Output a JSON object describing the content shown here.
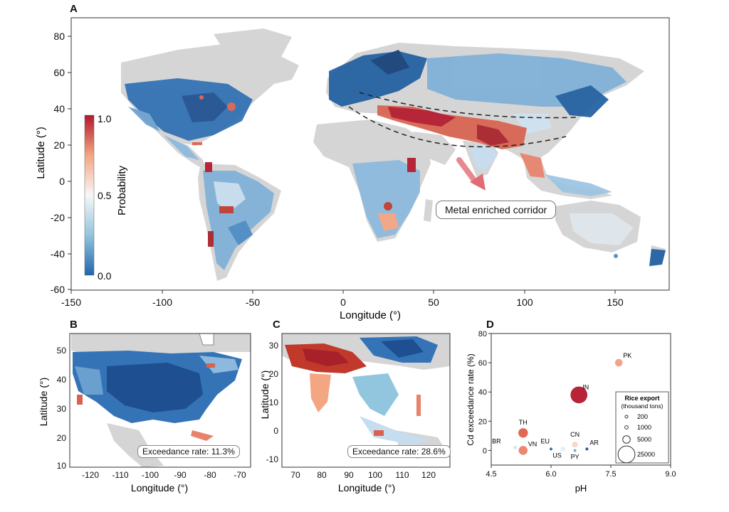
{
  "panels": {
    "a": "A",
    "b": "B",
    "c": "C",
    "d": "D"
  },
  "colorbar": {
    "label": "Probability",
    "ticks": [
      "1.0",
      "0.5",
      "0.0"
    ],
    "colors": [
      "#b2182b",
      "#f4a582",
      "#f7f7f7",
      "#92c5de",
      "#2166ac"
    ]
  },
  "corridor_label": "Metal enriched corridor",
  "exceedance": {
    "b": "Exceedance rate: 11.3%",
    "c": "Exceedance rate: 28.6%"
  },
  "colors": {
    "land": "#d3d3d3",
    "high": "#b2182b",
    "mid_high": "#e8826b",
    "low": "#4a8bc4",
    "very_low": "#1f5ea0",
    "light": "#cfe3f1"
  },
  "chart_data": [
    {
      "type": "map",
      "panel": "A",
      "xlabel": "Longitude (°)",
      "ylabel": "Latitude (°)",
      "xlim": [
        -150,
        180
      ],
      "ylim": [
        -60,
        90
      ],
      "xticks": [
        "-150",
        "-100",
        "-50",
        "0",
        "50",
        "100",
        "150"
      ],
      "yticks": [
        "80",
        "60",
        "40",
        "20",
        "0",
        "-20",
        "-40",
        "-60"
      ]
    },
    {
      "type": "map",
      "panel": "B",
      "xlabel": "Longitude (°)",
      "ylabel": "Latitude (°)",
      "xlim": [
        -127,
        -65
      ],
      "ylim": [
        10,
        55
      ],
      "xticks": [
        "-120",
        "-110",
        "-100",
        "-90",
        "-80",
        "-70"
      ],
      "yticks": [
        "50",
        "40",
        "30",
        "20",
        "10"
      ]
    },
    {
      "type": "map",
      "panel": "C",
      "xlabel": "Longitude (°)",
      "ylabel": "Latitude (°)",
      "xlim": [
        65,
        128
      ],
      "ylim": [
        -12,
        35
      ],
      "xticks": [
        "70",
        "80",
        "90",
        "100",
        "110",
        "120"
      ],
      "yticks": [
        "30",
        "20",
        "10",
        "0",
        "-10"
      ]
    },
    {
      "type": "scatter",
      "panel": "D",
      "xlabel": "pH",
      "ylabel": "Cd exceedance rate (%)",
      "xlim": [
        4.5,
        9.0
      ],
      "ylim": [
        -10,
        80
      ],
      "xticks": [
        "4.5",
        "6.0",
        "7.5",
        "9.0"
      ],
      "yticks": [
        "80",
        "60",
        "40",
        "20",
        "0"
      ],
      "points": [
        {
          "label": "PK",
          "x": 7.7,
          "y": 60,
          "size": 5000,
          "color": "#eea085"
        },
        {
          "label": "IN",
          "x": 6.7,
          "y": 38,
          "size": 25000,
          "color": "#b2182b"
        },
        {
          "label": "TH",
          "x": 5.3,
          "y": 12,
          "size": 8000,
          "color": "#e0604a"
        },
        {
          "label": "BR",
          "x": 5.1,
          "y": 2,
          "size": 1000,
          "color": "#cfe3f1"
        },
        {
          "label": "VN",
          "x": 5.3,
          "y": 0,
          "size": 7000,
          "color": "#e8826b"
        },
        {
          "label": "EU",
          "x": 6.0,
          "y": 1,
          "size": 200,
          "color": "#2a6bb0"
        },
        {
          "label": "CN",
          "x": 6.6,
          "y": 4,
          "size": 3000,
          "color": "#f7d6c8"
        },
        {
          "label": "US",
          "x": 6.3,
          "y": 1,
          "size": 2000,
          "color": "#e3eef7"
        },
        {
          "label": "PY",
          "x": 6.6,
          "y": 0,
          "size": 600,
          "color": "#6fa6d3"
        },
        {
          "label": "AR",
          "x": 6.9,
          "y": 1,
          "size": 200,
          "color": "#1f4f8a"
        }
      ],
      "legend": {
        "title_line1": "Rice export",
        "title_line2": "(thousand tons)",
        "entries": [
          "200",
          "1000",
          "5000",
          "25000"
        ]
      }
    }
  ]
}
